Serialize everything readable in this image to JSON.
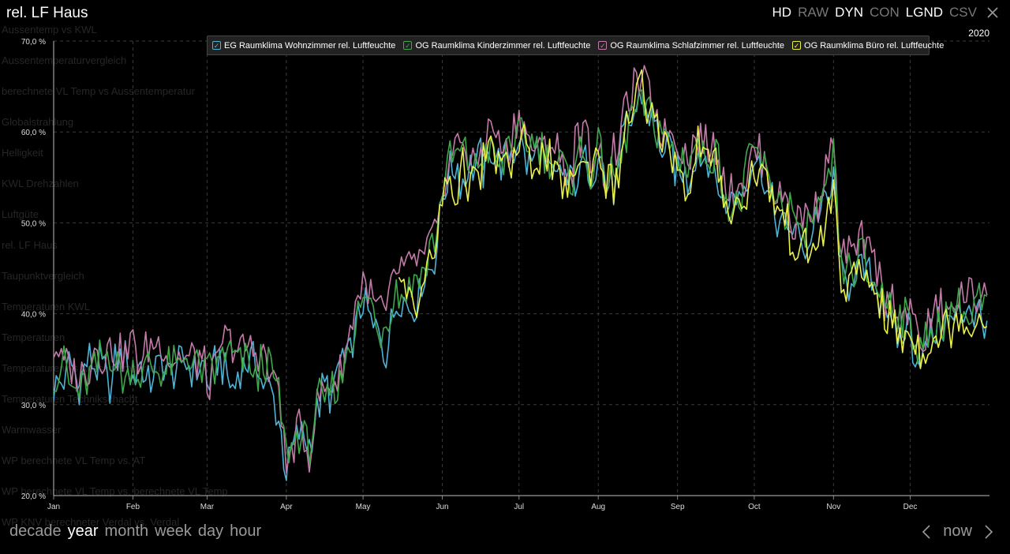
{
  "page_title": "rel. LF Haus",
  "topbar": [
    {
      "label": "HD",
      "on": true
    },
    {
      "label": "RAW",
      "on": false
    },
    {
      "label": "DYN",
      "on": true
    },
    {
      "label": "CON",
      "on": false
    },
    {
      "label": "LGND",
      "on": true
    },
    {
      "label": "CSV",
      "on": false
    }
  ],
  "year_label": "2020",
  "background_menu": [
    "Aussentemp vs KWL",
    "Aussentemperaturvergleich",
    "berechnete VL Temp vs Aussentemperatur",
    "Globalstrahlung",
    "Helligkeit",
    "KWL Drehzahlen",
    "Luftgüte",
    "rel. LF Haus",
    "Taupunktvergleich",
    "Temperaturen KWL",
    "Temperaturen",
    "Temperaturen vs Aussentemperatur",
    "Temperaturen Technikschacht",
    "Warmwasser",
    "WP berechnete VL Temp vs. AT",
    "WP berechnete VL Temp vs. berechnete VL Temp",
    "WP KNV berechneter Verdal vs. Verdal"
  ],
  "range_buttons": [
    "decade",
    "year",
    "month",
    "week",
    "day",
    "hour"
  ],
  "active_range": "year",
  "nav": {
    "now": "now"
  },
  "colors": {
    "eg": "#4fb3d6",
    "og_kinder": "#3ea84a",
    "og_schlaf": "#c47aa8",
    "og_buero": "#e9f04a"
  },
  "chart_data": {
    "type": "line",
    "ylabel": "",
    "ylim": [
      20,
      70
    ],
    "y_ticks": [
      "20,0 %",
      "30,0 %",
      "40,0 %",
      "50,0 %",
      "60,0 %",
      "70,0 %"
    ],
    "y_tick_values": [
      20,
      30,
      40,
      50,
      60,
      70
    ],
    "x_ticks": [
      "Jan",
      "Feb",
      "Mar",
      "Apr",
      "May",
      "Jun",
      "Jul",
      "Aug",
      "Sep",
      "Oct",
      "Nov",
      "Dec"
    ],
    "x_tick_days": [
      0,
      31,
      60,
      91,
      121,
      152,
      182,
      213,
      244,
      274,
      305,
      335
    ],
    "x_range_days": [
      0,
      366
    ],
    "grid": true,
    "legend_position": "top",
    "key_days": [
      0,
      5,
      10,
      15,
      20,
      25,
      31,
      35,
      40,
      45,
      50,
      55,
      60,
      63,
      66,
      70,
      75,
      80,
      85,
      88,
      91,
      95,
      100,
      105,
      110,
      115,
      118,
      121,
      125,
      130,
      135,
      140,
      145,
      150,
      152,
      155,
      160,
      165,
      170,
      175,
      180,
      182,
      185,
      190,
      195,
      200,
      205,
      210,
      213,
      216,
      220,
      225,
      230,
      235,
      240,
      244,
      248,
      252,
      256,
      260,
      265,
      270,
      274,
      278,
      282,
      287,
      292,
      297,
      302,
      305,
      308,
      312,
      316,
      321,
      326,
      331,
      335,
      340,
      345,
      350,
      355,
      360,
      365
    ],
    "series": [
      {
        "name": "EG Raumklima Wohnzimmer rel. Luftfeuchte",
        "color": "#4fb3d6",
        "visible": true,
        "values": [
          33,
          34,
          32,
          35,
          33,
          34,
          34,
          33,
          34,
          33,
          34,
          33,
          33,
          34,
          35,
          33,
          34,
          34,
          32,
          29,
          24,
          27,
          26,
          31,
          32,
          36,
          38,
          42,
          38,
          37,
          43,
          42,
          44,
          47,
          52,
          55,
          56,
          55,
          58,
          56,
          58,
          60,
          57,
          58,
          56,
          54,
          56,
          55,
          57,
          54,
          55,
          61,
          65,
          62,
          58,
          57,
          54,
          58,
          56,
          55,
          51,
          53,
          56,
          54,
          52,
          50,
          48,
          49,
          52,
          56,
          44,
          44,
          44,
          44,
          40,
          38,
          38,
          35,
          37,
          39,
          41,
          39,
          41
        ]
      },
      {
        "name": "OG Raumklima Kinderzimmer rel. Luftfeuchte",
        "color": "#3ea84a",
        "visible": true,
        "values": [
          34,
          33,
          32,
          35,
          35,
          34,
          34,
          34,
          35,
          34,
          34,
          34,
          32,
          34,
          36,
          34,
          34,
          34,
          33,
          30,
          24,
          27,
          26,
          31,
          32,
          36,
          38,
          43,
          39,
          38,
          43,
          43,
          45,
          48,
          53,
          56,
          57,
          56,
          58,
          57,
          59,
          60,
          58,
          58,
          57,
          55,
          57,
          56,
          58,
          55,
          56,
          62,
          64,
          62,
          59,
          58,
          56,
          59,
          57,
          56,
          52,
          54,
          57,
          55,
          53,
          51,
          49,
          50,
          53,
          57,
          45,
          45,
          46,
          44,
          41,
          39,
          38,
          36,
          38,
          40,
          41,
          40,
          42
        ]
      },
      {
        "name": "OG Raumklima Schlafzimmer rel. Luftfeuchte",
        "color": "#c47aa8",
        "visible": true,
        "values": [
          35,
          35,
          33,
          36,
          36,
          36,
          36,
          35,
          36,
          35,
          36,
          36,
          33,
          35,
          37,
          36,
          36,
          36,
          34,
          31,
          23,
          27,
          25,
          31,
          32,
          37,
          40,
          45,
          40,
          40,
          44,
          44,
          46,
          49,
          55,
          57,
          58,
          57,
          60,
          58,
          60,
          61,
          59,
          59,
          58,
          56,
          58,
          58,
          60,
          56,
          57,
          63,
          66,
          63,
          60,
          59,
          57,
          60,
          58,
          57,
          53,
          55,
          58,
          56,
          54,
          52,
          50,
          51,
          55,
          59,
          46,
          46,
          47,
          45,
          42,
          40,
          39,
          37,
          39,
          41,
          43,
          41,
          44
        ]
      },
      {
        "name": "OG Raumklima Büro rel. Luftfeuchte",
        "color": "#e9f04a",
        "visible": true,
        "values": [
          null,
          null,
          null,
          null,
          null,
          null,
          null,
          null,
          null,
          null,
          null,
          null,
          null,
          null,
          null,
          null,
          null,
          null,
          null,
          null,
          null,
          null,
          null,
          null,
          null,
          null,
          null,
          null,
          null,
          null,
          41,
          42,
          44,
          47,
          52,
          54,
          55,
          55,
          57,
          56,
          58,
          59,
          57,
          57,
          56,
          54,
          56,
          55,
          57,
          54,
          55,
          61,
          64,
          61,
          58,
          57,
          55,
          58,
          56,
          55,
          51,
          53,
          56,
          54,
          52,
          50,
          48,
          48,
          51,
          55,
          44,
          44,
          44,
          43,
          39,
          37,
          37,
          35,
          37,
          38,
          40,
          39,
          41
        ]
      }
    ]
  }
}
